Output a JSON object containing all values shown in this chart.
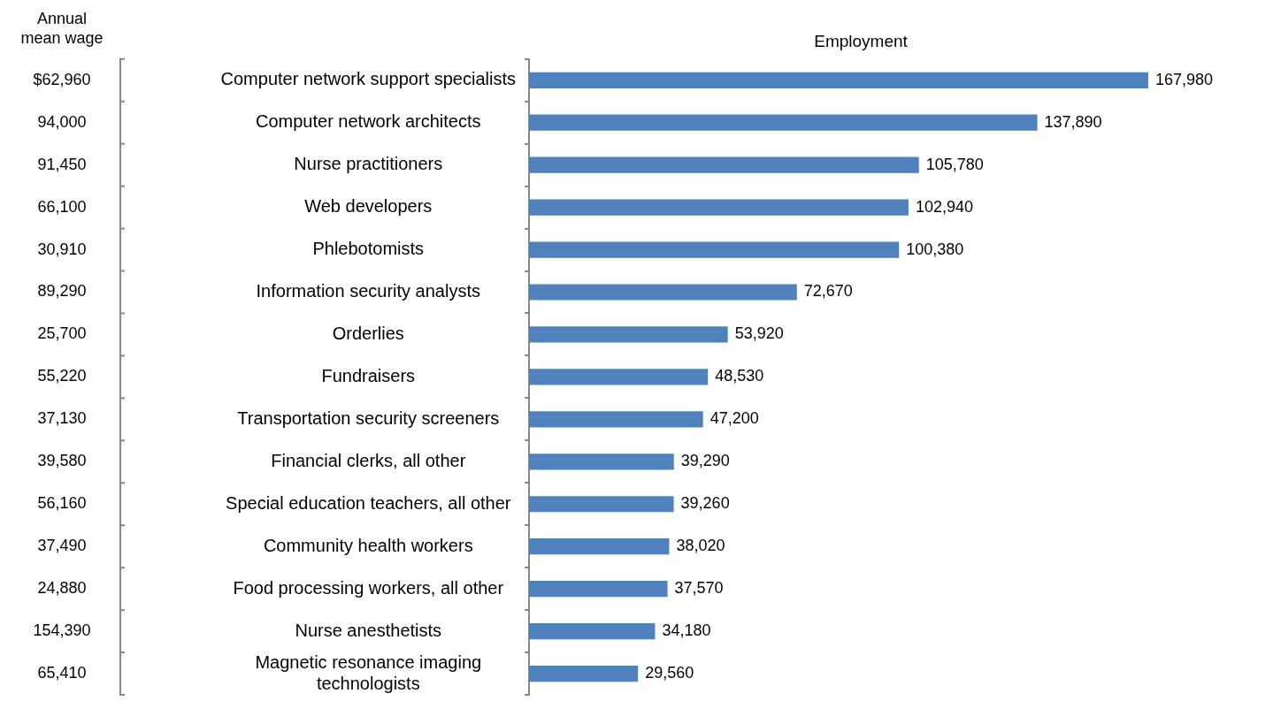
{
  "chart_data": {
    "type": "bar",
    "orientation": "horizontal",
    "xlabel": "Employment",
    "grid": false,
    "legend": false,
    "categories": [
      "Computer network support specialists",
      "Computer network architects",
      "Nurse practitioners",
      "Web developers",
      "Phlebotomists",
      "Information security analysts",
      "Orderlies",
      "Fundraisers",
      "Transportation security screeners",
      "Financial clerks, all other",
      "Special education teachers, all other",
      "Community health workers",
      "Food processing workers, all other",
      "Nurse anesthetists",
      "Magnetic resonance imaging technologists"
    ],
    "values": [
      167980,
      137890,
      105780,
      102940,
      100380,
      72670,
      53920,
      48530,
      47200,
      39290,
      39260,
      38020,
      37570,
      34180,
      29560
    ],
    "value_labels": [
      "167,980",
      "137,890",
      "105,780",
      "102,940",
      "100,380",
      "72,670",
      "53,920",
      "48,530",
      "47,200",
      "39,290",
      "39,260",
      "38,020",
      "37,570",
      "34,180",
      "29,560"
    ],
    "color": "#4f81bd",
    "annotations": [
      "Annual mean wage",
      "$62,960",
      "94,000",
      "91,450",
      "66,100",
      "30,910",
      "89,290",
      "25,700",
      "55,220",
      "37,130",
      "39,580",
      "56,160",
      "37,490",
      "24,880",
      "154,390",
      "65,410"
    ]
  }
}
